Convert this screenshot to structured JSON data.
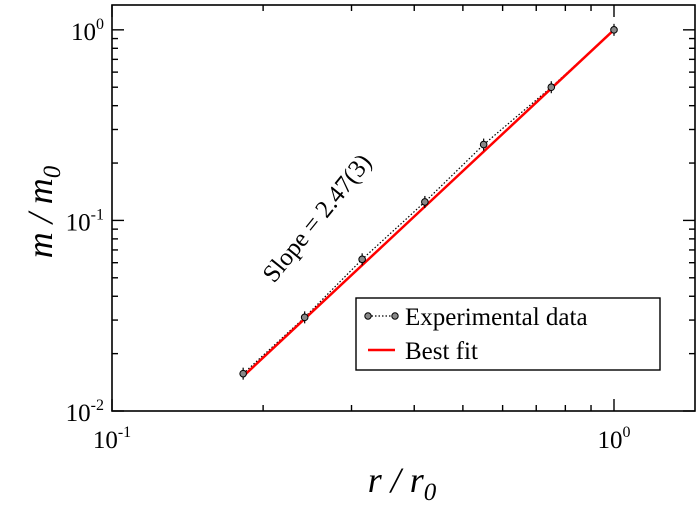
{
  "chart_data": {
    "type": "scatter",
    "x_scale": "log",
    "y_scale": "log",
    "xlim": [
      0.1,
      1.45
    ],
    "ylim": [
      0.01,
      1.35
    ],
    "xlabel": "r / r",
    "xlabel_sub": "0",
    "ylabel": "m / m",
    "ylabel_sub": "0",
    "x_ticks": [
      {
        "label": "10",
        "exp": "-1"
      },
      {
        "label": "10",
        "exp": "0"
      }
    ],
    "y_ticks": [
      {
        "label": "10",
        "exp": "-2"
      },
      {
        "label": "10",
        "exp": "-1"
      },
      {
        "label": "10",
        "exp": "0"
      }
    ],
    "grid": false,
    "legend_position": "bottom-right",
    "series": [
      {
        "name": "Experimental data",
        "style": "dotted-with-circle-markers",
        "color": "#000000",
        "x": [
          0.1825,
          0.242,
          0.315,
          0.42,
          0.55,
          0.75,
          1.0
        ],
        "y": [
          0.0157,
          0.031,
          0.0625,
          0.125,
          0.25,
          0.5,
          1.0
        ]
      },
      {
        "name": "Best fit",
        "style": "solid",
        "color": "#ff0000",
        "x": [
          0.1825,
          1.0
        ],
        "y": [
          0.0152,
          1.0
        ]
      }
    ],
    "annotations": [
      {
        "text": "Slope = 2.47(3)"
      }
    ]
  }
}
